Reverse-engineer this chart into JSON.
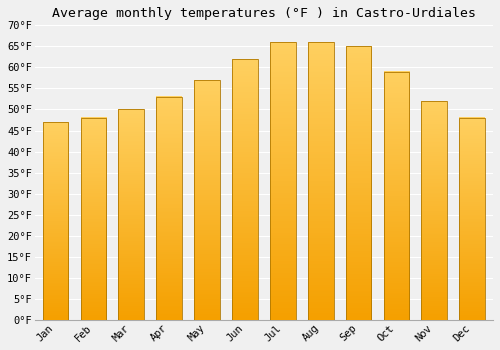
{
  "title": "Average monthly temperatures (°F ) in Castro-Urdiales",
  "months": [
    "Jan",
    "Feb",
    "Mar",
    "Apr",
    "May",
    "Jun",
    "Jul",
    "Aug",
    "Sep",
    "Oct",
    "Nov",
    "Dec"
  ],
  "values": [
    47,
    48,
    50,
    53,
    57,
    62,
    66,
    66,
    65,
    59,
    52,
    48
  ],
  "color_bottom": "#F5A000",
  "color_top": "#FFD060",
  "bar_edge_color": "#B07800",
  "ylim": [
    0,
    70
  ],
  "yticks": [
    0,
    5,
    10,
    15,
    20,
    25,
    30,
    35,
    40,
    45,
    50,
    55,
    60,
    65,
    70
  ],
  "ytick_labels": [
    "0°F",
    "5°F",
    "10°F",
    "15°F",
    "20°F",
    "25°F",
    "30°F",
    "35°F",
    "40°F",
    "45°F",
    "50°F",
    "55°F",
    "60°F",
    "65°F",
    "70°F"
  ],
  "background_color": "#f0f0f0",
  "grid_color": "#ffffff",
  "title_fontsize": 9.5,
  "tick_fontsize": 7.5,
  "font_family": "monospace",
  "bar_width": 0.68,
  "figsize": [
    5.0,
    3.5
  ],
  "dpi": 100
}
